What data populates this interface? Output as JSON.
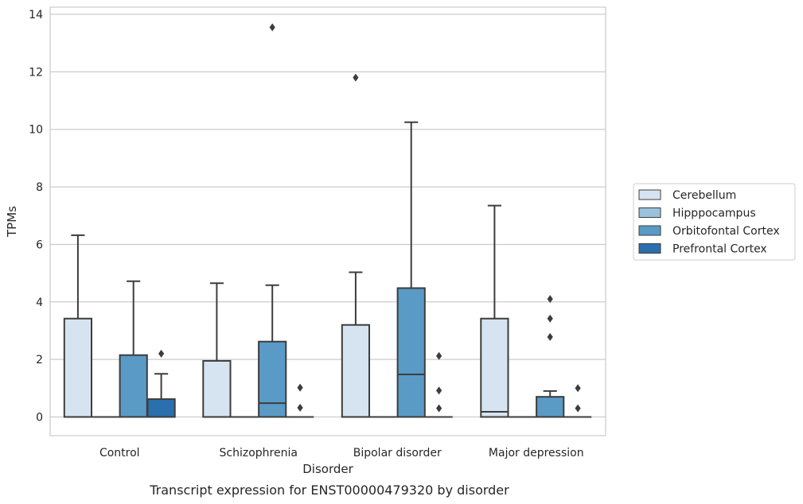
{
  "chart_data": {
    "type": "box",
    "title": "",
    "caption": "Transcript expression for ENST00000479320 by disorder",
    "xlabel": "Disorder",
    "ylabel": "TPMs",
    "ylim": [
      -0.65,
      14.25
    ],
    "yticks": [
      0,
      2,
      4,
      6,
      8,
      10,
      12,
      14
    ],
    "grid": "horizontal",
    "legend_position": "right",
    "categories": [
      "Control",
      "Schizophrenia",
      "Bipolar disorder",
      "Major depression"
    ],
    "series": [
      {
        "name": "Cerebellum",
        "color": "#d6e4f1",
        "boxes": [
          {
            "q1": 0,
            "median": 0,
            "q3": 3.42,
            "whisker_low": 0,
            "whisker_high": 6.32,
            "outliers": []
          },
          {
            "q1": 0,
            "median": 0,
            "q3": 1.95,
            "whisker_low": 0,
            "whisker_high": 4.65,
            "outliers": []
          },
          {
            "q1": 0,
            "median": 0,
            "q3": 3.2,
            "whisker_low": 0,
            "whisker_high": 5.03,
            "outliers": [
              11.8
            ]
          },
          {
            "q1": 0,
            "median": 0.18,
            "q3": 3.42,
            "whisker_low": 0,
            "whisker_high": 7.35,
            "outliers": []
          }
        ]
      },
      {
        "name": "Hipppocampus",
        "color": "#9ac2dd",
        "boxes": [
          {
            "q1": 0,
            "median": 0,
            "q3": 0,
            "whisker_low": 0,
            "whisker_high": 0,
            "outliers": []
          },
          {
            "q1": 0,
            "median": 0,
            "q3": 0,
            "whisker_low": 0,
            "whisker_high": 0,
            "outliers": []
          },
          {
            "q1": 0,
            "median": 0,
            "q3": 0,
            "whisker_low": 0,
            "whisker_high": 0,
            "outliers": []
          },
          {
            "q1": 0,
            "median": 0,
            "q3": 0,
            "whisker_low": 0,
            "whisker_high": 0,
            "outliers": []
          }
        ]
      },
      {
        "name": "Orbitofontal Cortex",
        "color": "#5a9ac6",
        "boxes": [
          {
            "q1": 0,
            "median": 0,
            "q3": 2.15,
            "whisker_low": 0,
            "whisker_high": 4.72,
            "outliers": []
          },
          {
            "q1": 0,
            "median": 0.48,
            "q3": 2.62,
            "whisker_low": 0,
            "whisker_high": 4.58,
            "outliers": [
              13.55
            ]
          },
          {
            "q1": 0,
            "median": 1.48,
            "q3": 4.48,
            "whisker_low": 0,
            "whisker_high": 10.25,
            "outliers": []
          },
          {
            "q1": 0,
            "median": 0,
            "q3": 0.7,
            "whisker_low": 0,
            "whisker_high": 0.9,
            "outliers": [
              2.78,
              3.42,
              4.1
            ]
          }
        ]
      },
      {
        "name": "Prefrontal Cortex",
        "color": "#2a6fae",
        "boxes": [
          {
            "q1": 0,
            "median": 0,
            "q3": 0.62,
            "whisker_low": 0,
            "whisker_high": 1.5,
            "outliers": [
              2.2
            ]
          },
          {
            "q1": 0,
            "median": 0,
            "q3": 0,
            "whisker_low": 0,
            "whisker_high": 0,
            "outliers": [
              0.32,
              1.02
            ]
          },
          {
            "q1": 0,
            "median": 0,
            "q3": 0,
            "whisker_low": 0,
            "whisker_high": 0,
            "outliers": [
              0.3,
              0.92,
              2.12
            ]
          },
          {
            "q1": 0,
            "median": 0,
            "q3": 0,
            "whisker_low": 0,
            "whisker_high": 0,
            "outliers": [
              0.3,
              1.0
            ]
          }
        ]
      }
    ]
  }
}
